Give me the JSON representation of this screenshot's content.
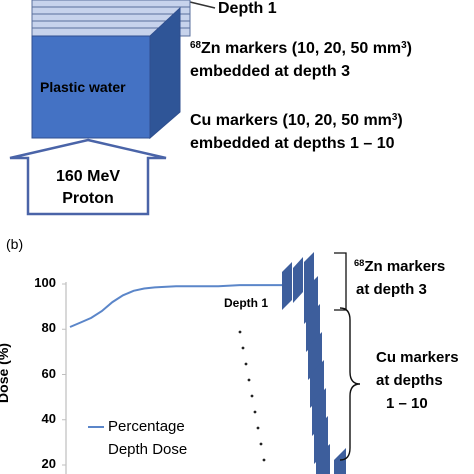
{
  "panel_a": {
    "depth_label": "Depth 1",
    "block_label": "Plastic water",
    "zn_line1_sup": "68",
    "zn_line1_text": "Zn markers (10, 20, 50 mm",
    "zn_line1_sup2": "3",
    "zn_line1_end": ")",
    "zn_line2": "embedded at depth 3",
    "cu_line1": "Cu markers (10, 20, 50 mm",
    "cu_line1_sup": "3",
    "cu_line1_end": ")",
    "cu_line2": "embedded at depths 1 – 10",
    "proton_line1": "160 MeV",
    "proton_line2": "Proton",
    "colors": {
      "block_front": "#4472c4",
      "block_side": "#2f5597",
      "layers": "#c7d3ec"
    }
  },
  "panel_b": {
    "panel_label": "(b)",
    "y_axis_label": "Dose (%)",
    "y_ticks": [
      "100",
      "80",
      "60",
      "40",
      "20"
    ],
    "depth_label": "Depth 1",
    "zn_sup": "68",
    "zn_line1": "Zn markers",
    "zn_line2": "at depth 3",
    "cu_line1": "Cu markers",
    "cu_line2": "at depths",
    "cu_line3": "1 – 10",
    "legend_line1": "Percentage",
    "legend_line2": "Depth Dose",
    "colors": {
      "curve": "#5b86c9",
      "markers": "#3d5e9c",
      "axis": "#bfbfbf"
    }
  },
  "chart_data": {
    "type": "line",
    "ylabel": "Dose (%)",
    "ylim": [
      20,
      100
    ],
    "y_ticks": [
      100,
      80,
      60,
      40,
      20
    ],
    "series": [
      {
        "name": "Percentage Depth Dose",
        "x": [
          0,
          0.05,
          0.1,
          0.15,
          0.2,
          0.25,
          0.3,
          0.35,
          0.4,
          0.5,
          0.6,
          0.7,
          0.8,
          0.9,
          1.0
        ],
        "values": [
          81,
          83,
          85,
          88,
          92,
          95,
          97,
          98,
          98.5,
          99,
          99,
          99,
          99.5,
          99.5,
          99.5
        ]
      }
    ]
  }
}
